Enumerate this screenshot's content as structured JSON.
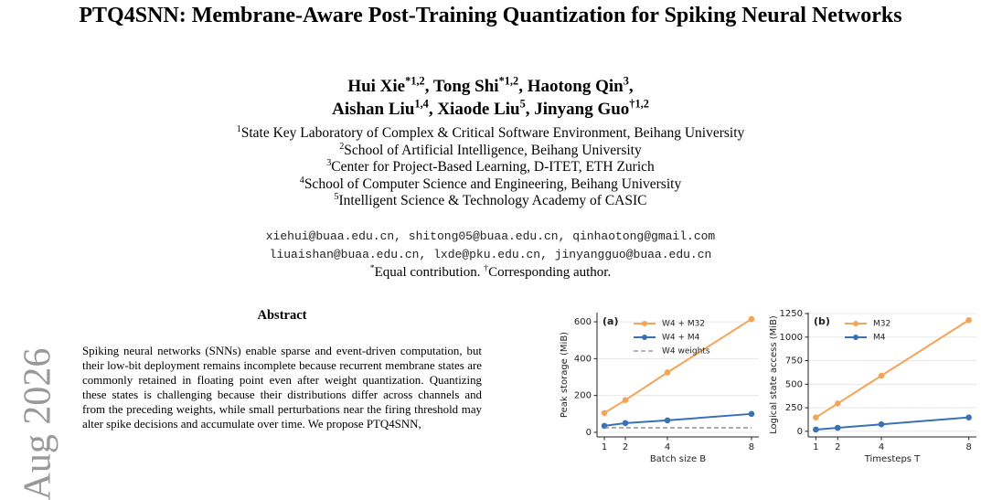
{
  "header": {
    "title": "PTQ4SNN: Membrane-Aware Post-Training Quantization for Spiking Neural Networks",
    "authors": [
      [
        {
          "name": "Hui Xie",
          "sup": "*1,2",
          "punct": ","
        },
        {
          "name": "Tong Shi",
          "sup": "*1,2",
          "punct": ","
        },
        {
          "name": "Haotong Qin",
          "sup": "3",
          "punct": ","
        }
      ],
      [
        {
          "name": "Aishan Liu",
          "sup": "1,4",
          "punct": ","
        },
        {
          "name": "Xiaode Liu",
          "sup": "5",
          "punct": ","
        },
        {
          "name": "Jinyang Guo",
          "sup": "†1,2"
        }
      ]
    ],
    "affiliations": [
      {
        "sup": "1",
        "text": "State Key Laboratory of Complex & Critical Software Environment, Beihang University"
      },
      {
        "sup": "2",
        "text": "School of Artificial Intelligence, Beihang University"
      },
      {
        "sup": "3",
        "text": "Center for Project-Based Learning, D-ITET, ETH Zurich"
      },
      {
        "sup": "4",
        "text": "School of Computer Science and Engineering, Beihang University"
      },
      {
        "sup": "5",
        "text": "Intelligent Science & Technology Academy of CASIC"
      }
    ],
    "emails": [
      "xiehui@buaa.edu.cn, shitong05@buaa.edu.cn, qinhaotong@gmail.com",
      "liuaishan@buaa.edu.cn, lxde@pku.edu.cn, jinyangguo@buaa.edu.cn"
    ],
    "note": [
      {
        "sup": "*",
        "text": "Equal contribution. "
      },
      {
        "sup": "†",
        "text": "Corresponding author."
      }
    ]
  },
  "margin_stamp": "Aug 2026",
  "abstract": {
    "heading": "Abstract",
    "text": "Spiking neural networks (SNNs) enable sparse and event-driven computation, but their low-bit deployment remains incomplete because recurrent membrane states are commonly retained in floating point even after weight quantization. Quantizing these states is challenging because their distributions differ across channels and from the preceding weights, while small perturbations near the firing threshold may alter spike decisions and accumulate over time. We propose PTQ4SNN,"
  },
  "chart_data": [
    {
      "type": "line",
      "panel": "(a)",
      "xlabel": "Batch size B",
      "ylabel": "Peak storage (MiB)",
      "x": [
        1,
        2,
        4,
        8
      ],
      "xlim": [
        0.65,
        8.35
      ],
      "xticks": [
        1,
        2,
        4,
        8
      ],
      "ylim": [
        -25,
        650
      ],
      "yticks": [
        0,
        200,
        400,
        600
      ],
      "grid": true,
      "series": [
        {
          "name": "W4 + M32",
          "color": "#f4a456",
          "values": [
            105,
            175,
            325,
            615
          ]
        },
        {
          "name": "W4 + M4",
          "color": "#3a71b2",
          "values": [
            35,
            50,
            65,
            100
          ]
        },
        {
          "name": "W4 weights",
          "color": "#888888",
          "dashed": true,
          "values": [
            25,
            25,
            25,
            25
          ]
        }
      ]
    },
    {
      "type": "line",
      "panel": "(b)",
      "xlabel": "Timesteps T",
      "ylabel": "Logical state access (MiB)",
      "x": [
        1,
        2,
        4,
        8
      ],
      "xlim": [
        0.65,
        8.35
      ],
      "xticks": [
        1,
        2,
        4,
        8
      ],
      "ylim": [
        -60,
        1260
      ],
      "yticks": [
        0,
        250,
        500,
        750,
        1000,
        1250
      ],
      "grid": true,
      "series": [
        {
          "name": "M32",
          "color": "#f4a456",
          "values": [
            147,
            295,
            590,
            1180
          ]
        },
        {
          "name": "M4",
          "color": "#3a71b2",
          "values": [
            18,
            37,
            74,
            147
          ]
        }
      ]
    }
  ]
}
